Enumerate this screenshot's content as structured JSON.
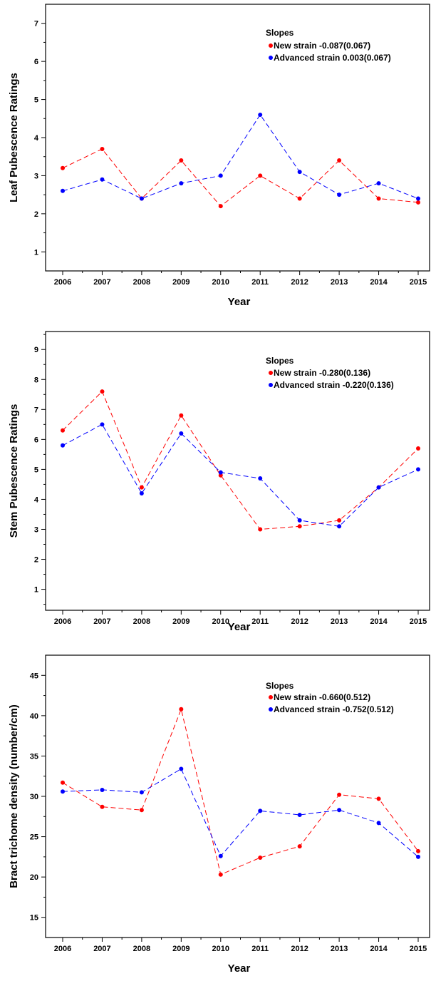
{
  "chart_data": [
    {
      "type": "line",
      "xlabel": "Year",
      "ylabel": "Leaf Pubescence Ratings",
      "categories": [
        "2006",
        "2007",
        "2008",
        "2009",
        "2010",
        "2011",
        "2012",
        "2013",
        "2014",
        "2015"
      ],
      "ylim": [
        0.5,
        7.5
      ],
      "yticks": [
        1,
        2,
        3,
        4,
        5,
        6,
        7
      ],
      "legend_title": "Slopes",
      "legend_position": "top-right",
      "series": [
        {
          "name": "New strain -0.087(0.067)",
          "color": "#ff0000",
          "values": [
            3.2,
            3.7,
            2.4,
            3.4,
            2.2,
            3.0,
            2.4,
            3.4,
            2.4,
            2.3
          ]
        },
        {
          "name": "Advanced strain 0.003(0.067)",
          "color": "#0000ff",
          "values": [
            2.6,
            2.9,
            2.4,
            2.8,
            3.0,
            4.6,
            3.1,
            2.5,
            2.8,
            2.4
          ]
        }
      ]
    },
    {
      "type": "line",
      "xlabel": "Year",
      "ylabel": "Stem Pubescence Ratings",
      "categories": [
        "2006",
        "2007",
        "2008",
        "2009",
        "2010",
        "2011",
        "2012",
        "2013",
        "2014",
        "2015"
      ],
      "ylim": [
        0.3,
        9.6
      ],
      "yticks": [
        1,
        2,
        3,
        4,
        5,
        6,
        7,
        8,
        9
      ],
      "legend_title": "Slopes",
      "legend_position": "top-right",
      "series": [
        {
          "name": "New strain -0.280(0.136)",
          "color": "#ff0000",
          "values": [
            6.3,
            7.6,
            4.4,
            6.8,
            4.8,
            3.0,
            3.1,
            3.3,
            4.4,
            5.7
          ]
        },
        {
          "name": "Advanced strain -0.220(0.136)",
          "color": "#0000ff",
          "values": [
            5.8,
            6.5,
            4.2,
            6.2,
            4.9,
            4.7,
            3.3,
            3.1,
            4.4,
            5.0
          ]
        }
      ]
    },
    {
      "type": "line",
      "xlabel": "Year",
      "ylabel": "Bract trichome density (number/cm)",
      "categories": [
        "2006",
        "2007",
        "2008",
        "2009",
        "2010",
        "2011",
        "2012",
        "2013",
        "2014",
        "2015"
      ],
      "ylim": [
        12.5,
        47.5
      ],
      "yticks": [
        15,
        20,
        25,
        30,
        35,
        40,
        45
      ],
      "legend_title": "Slopes",
      "legend_position": "top-right",
      "series": [
        {
          "name": "New strain -0.660(0.512)",
          "color": "#ff0000",
          "values": [
            31.7,
            28.7,
            28.3,
            40.8,
            20.3,
            22.4,
            23.8,
            30.2,
            29.7,
            23.2
          ]
        },
        {
          "name": "Advanced strain -0.752(0.512)",
          "color": "#0000ff",
          "values": [
            30.6,
            30.8,
            30.5,
            33.4,
            22.6,
            28.2,
            27.7,
            28.3,
            26.7,
            22.5
          ]
        }
      ]
    }
  ]
}
